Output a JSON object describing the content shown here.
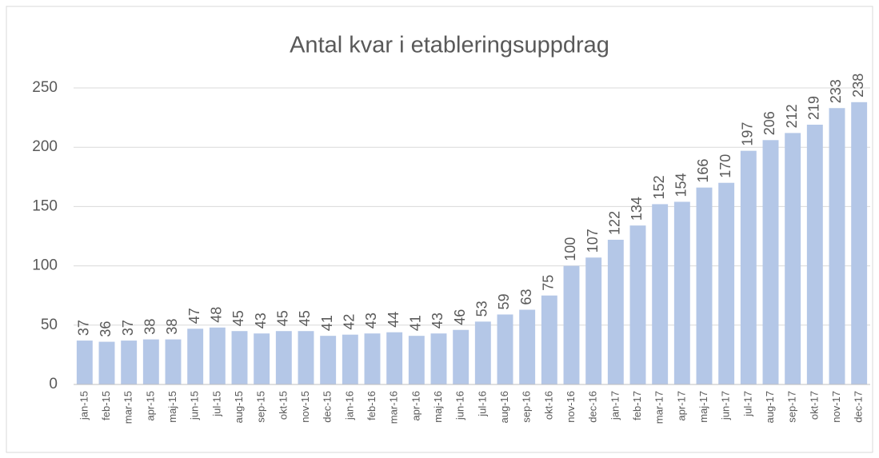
{
  "chart_data": {
    "type": "bar",
    "title": "Antal kvar i etableringsuppdrag",
    "categories": [
      "jan-15",
      "feb-15",
      "mar-15",
      "apr-15",
      "maj-15",
      "jun-15",
      "jul-15",
      "aug-15",
      "sep-15",
      "okt-15",
      "nov-15",
      "dec-15",
      "jan-16",
      "feb-16",
      "mar-16",
      "apr-16",
      "maj-16",
      "jun-16",
      "jul-16",
      "aug-16",
      "sep-16",
      "okt-16",
      "nov-16",
      "dec-16",
      "jan-17",
      "feb-17",
      "mar-17",
      "apr-17",
      "maj-17",
      "jun-17",
      "jul-17",
      "aug-17",
      "sep-17",
      "okt-17",
      "nov-17",
      "dec-17"
    ],
    "values": [
      37,
      36,
      37,
      38,
      38,
      47,
      48,
      45,
      43,
      45,
      45,
      41,
      42,
      43,
      44,
      41,
      43,
      46,
      53,
      59,
      63,
      75,
      100,
      107,
      122,
      134,
      152,
      154,
      166,
      170,
      197,
      206,
      212,
      219,
      233,
      238
    ],
    "color": "#b4c7e7",
    "ylim": [
      0,
      250
    ],
    "yticks": [
      0,
      50,
      100,
      150,
      200,
      250
    ],
    "grid": true
  }
}
